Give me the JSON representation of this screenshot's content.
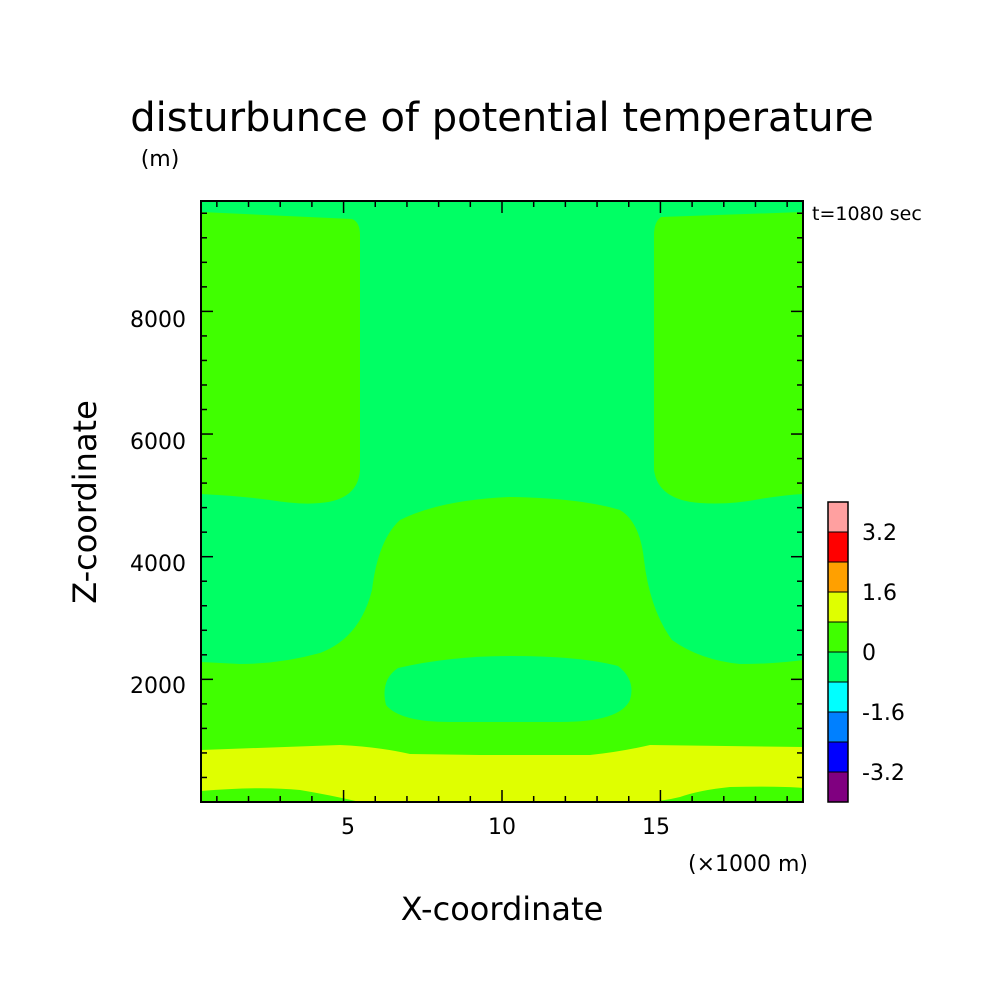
{
  "chart_data": {
    "type": "contour",
    "title": "disturbunce of potential temperature",
    "xlabel": "X-coordinate",
    "ylabel": "Z-coordinate",
    "x_unit": "(×1000 m)",
    "y_unit": "(m)",
    "time_label": "t=1080 sec",
    "xlim": [
      0.5,
      19.5
    ],
    "ylim": [
      0,
      9800
    ],
    "x_ticks": [
      "5",
      "10",
      "15"
    ],
    "x_tick_values": [
      5,
      10,
      15
    ],
    "y_ticks": [
      "2000",
      "4000",
      "6000",
      "8000"
    ],
    "y_tick_values": [
      2000,
      4000,
      6000,
      8000
    ],
    "grid": false,
    "colorbar": {
      "position": "right",
      "levels": [
        -4.0,
        -3.2,
        -2.4,
        -1.6,
        -0.8,
        0,
        0.8,
        1.6,
        2.4,
        3.2,
        4.0
      ],
      "colors": [
        "#800080",
        "#0000ff",
        "#0080ff",
        "#00ffff",
        "#00ff64",
        "#40ff00",
        "#dfff00",
        "#ffa000",
        "#ff0000",
        "#ffa0a0"
      ],
      "tick_labels": [
        "3.2",
        "1.6",
        "0",
        "-1.6",
        "-3.2"
      ],
      "tick_values": [
        3.2,
        1.6,
        0,
        -1.6,
        -3.2
      ]
    },
    "regions": [
      {
        "name": "slightly-negative",
        "range": [
          -0.8,
          0
        ],
        "color": "#00ff64",
        "extent": "domain background"
      },
      {
        "name": "slightly-positive",
        "range": [
          0,
          0.8
        ],
        "color": "#40ff00",
        "extent": "upper-left and upper-right columns above 5000 m; central dome 2300-5100 m; lower band 700-2400 m"
      },
      {
        "name": "positive",
        "range": [
          0.8,
          1.6
        ],
        "color": "#dfff00",
        "extent": "near-surface band 0-1000 m"
      },
      {
        "name": "inner-negative",
        "range": [
          -0.8,
          0
        ],
        "color": "#00ff64",
        "extent": "central lens around x=10, z=1400-2500 m"
      }
    ]
  }
}
